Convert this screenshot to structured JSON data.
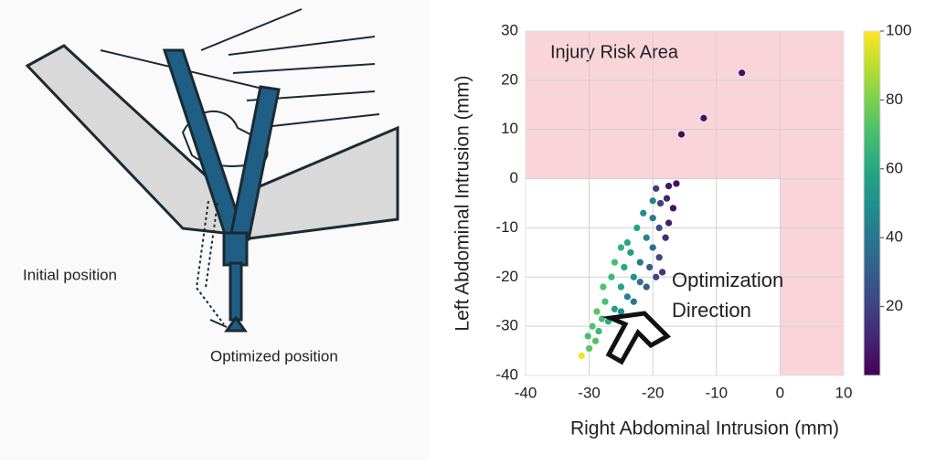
{
  "diagram": {
    "labels": [
      "Initial position",
      "Optimized position"
    ]
  },
  "chart_data": {
    "type": "scatter",
    "xlabel": "Right Abdominal Intrusion (mm)",
    "ylabel": "Left Abdominal Intrusion (mm)",
    "x": [
      -31.2,
      -30,
      -29,
      -30.2,
      -28.5,
      -29.5,
      -28,
      -27,
      -28.8,
      -27.5,
      -26,
      -25,
      -27.8,
      -26.5,
      -25,
      -24,
      -23,
      -26,
      -24.5,
      -23,
      -22,
      -21,
      -25,
      -23.5,
      -22,
      -20.5,
      -19.5,
      -22.5,
      -21,
      -20,
      -19,
      -18.5,
      -21.5,
      -20,
      -19,
      -18,
      -17.5,
      -18.8,
      -17.8,
      -16.8,
      -16.3,
      -17.5,
      -19.5,
      -20,
      -24,
      -15.5,
      -12,
      -6
    ],
    "values": [
      -36,
      -34.5,
      -33,
      -32,
      -31,
      -30,
      -28.5,
      -29,
      -27,
      -25,
      -26.5,
      -27,
      -22,
      -20,
      -22,
      -24,
      -25,
      -17,
      -18,
      -20,
      -21,
      -22,
      -14,
      -15,
      -17,
      -18,
      -20,
      -10,
      -12,
      -14,
      -16,
      -19,
      -7,
      -8,
      -10,
      -12,
      -9,
      -5,
      -4,
      -6,
      -1,
      -1.5,
      -2,
      -4.5,
      -13,
      9,
      12.3,
      21.5
    ],
    "color_values": [
      98,
      75,
      72,
      70,
      68,
      72,
      70,
      62,
      74,
      70,
      55,
      48,
      72,
      68,
      58,
      45,
      40,
      70,
      62,
      50,
      38,
      30,
      65,
      55,
      42,
      30,
      22,
      58,
      45,
      35,
      20,
      15,
      50,
      40,
      25,
      12,
      8,
      20,
      10,
      5,
      4,
      6,
      18,
      45,
      60,
      3,
      5,
      4
    ],
    "colormap": "viridis",
    "clim": [
      0,
      100
    ],
    "cticks": [
      20,
      40,
      60,
      80,
      100
    ],
    "xlim": [
      -40,
      10
    ],
    "xticks": [
      -40,
      -30,
      -20,
      -10,
      0,
      10
    ],
    "ylim": [
      -40,
      30
    ],
    "yticks": [
      -40,
      -30,
      -20,
      -10,
      0,
      10,
      20,
      30
    ],
    "grid": true,
    "risk_area": {
      "label": "Injury Risk Area",
      "x_min": 0,
      "y_min": 0,
      "color": "#f9d5d9"
    },
    "annotation": [
      "Optimization",
      "Direction"
    ]
  }
}
